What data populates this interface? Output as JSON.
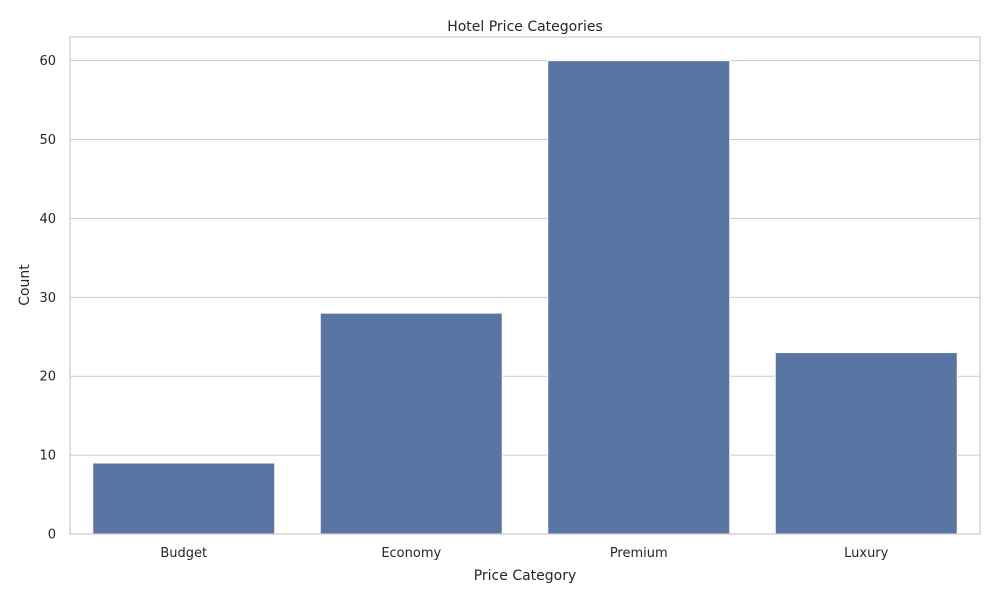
{
  "chart_data": {
    "type": "bar",
    "title": "Hotel Price Categories",
    "xlabel": "Price Category",
    "ylabel": "Count",
    "categories": [
      "Budget",
      "Economy",
      "Premium",
      "Luxury"
    ],
    "values": [
      9,
      28,
      60,
      23
    ],
    "ylim": [
      0,
      63
    ],
    "yticks": [
      0,
      10,
      20,
      30,
      40,
      50,
      60
    ],
    "grid": true,
    "bar_color": "#5875a4"
  }
}
